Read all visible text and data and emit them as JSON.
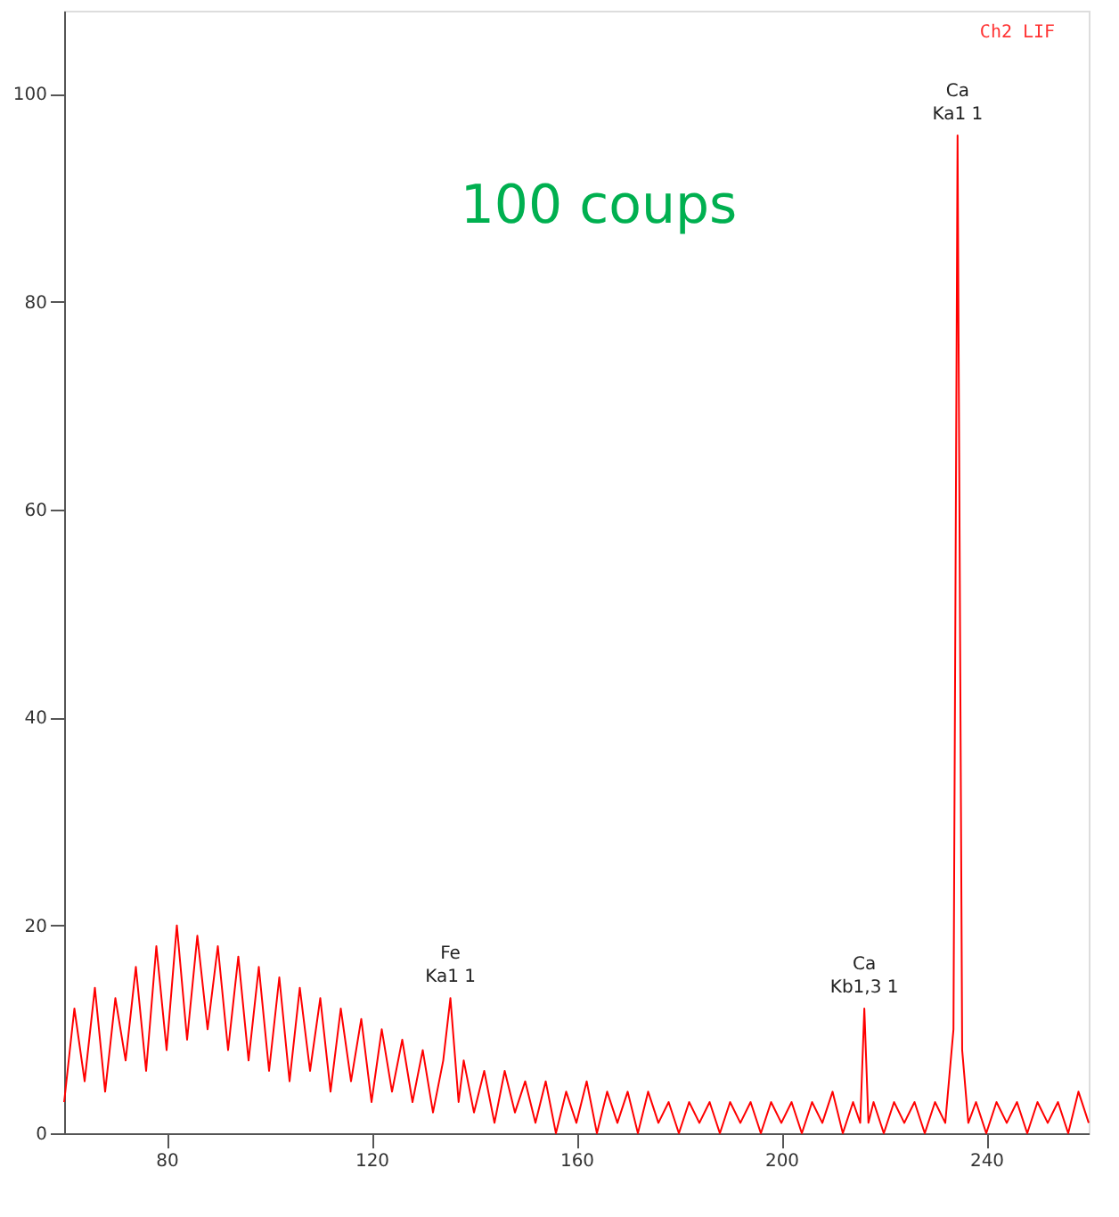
{
  "chart_data": {
    "type": "line",
    "xlim": [
      60,
      260
    ],
    "ylim": [
      0,
      108
    ],
    "xticks": [
      80,
      120,
      160,
      200,
      240
    ],
    "yticks": [
      0,
      20,
      40,
      60,
      80,
      100
    ],
    "grid": false,
    "marker": "none",
    "line_style": "solid",
    "series": [
      {
        "color": "#ff0000",
        "x": [
          60,
          62,
          64,
          66,
          68,
          70,
          72,
          74,
          76,
          78,
          80,
          82,
          84,
          86,
          88,
          90,
          92,
          94,
          96,
          98,
          100,
          102,
          104,
          106,
          108,
          110,
          112,
          114,
          116,
          118,
          120,
          122,
          124,
          126,
          128,
          130,
          132,
          134,
          135.4,
          137,
          138,
          140,
          142,
          144,
          146,
          148,
          150,
          152,
          154,
          156,
          158,
          160,
          162,
          164,
          166,
          168,
          170,
          172,
          174,
          176,
          178,
          180,
          182,
          184,
          186,
          188,
          190,
          192,
          194,
          196,
          198,
          200,
          202,
          204,
          206,
          208,
          210,
          212,
          214,
          215.4,
          216.2,
          217,
          218,
          220,
          222,
          224,
          226,
          228,
          230,
          232,
          233.6,
          234.4,
          235.3,
          236.5,
          238,
          240,
          242,
          244,
          246,
          248,
          250,
          252,
          254,
          256,
          258,
          260
        ],
        "values": [
          3,
          12,
          5,
          14,
          4,
          13,
          7,
          16,
          6,
          18,
          8,
          20,
          9,
          19,
          10,
          18,
          8,
          17,
          7,
          16,
          6,
          15,
          5,
          14,
          6,
          13,
          4,
          12,
          5,
          11,
          3,
          10,
          4,
          9,
          3,
          8,
          2,
          7,
          13,
          3,
          7,
          2,
          6,
          1,
          6,
          2,
          5,
          1,
          5,
          0,
          4,
          1,
          5,
          0,
          4,
          1,
          4,
          0,
          4,
          1,
          3,
          0,
          3,
          1,
          3,
          0,
          3,
          1,
          3,
          0,
          3,
          1,
          3,
          0,
          3,
          1,
          4,
          0,
          3,
          1,
          12,
          1,
          3,
          0,
          3,
          1,
          3,
          0,
          3,
          1,
          10,
          96,
          8,
          1,
          3,
          0,
          3,
          1,
          3,
          0,
          3,
          1,
          3,
          0,
          4,
          1
        ]
      }
    ],
    "annotations": [
      "100 coups",
      "Ch2  LIF",
      {
        "text": "Fe\nKa1 1",
        "x": 135.4,
        "y": 13
      },
      {
        "text": "Ca\nKb1,3 1",
        "x": 216.2,
        "y": 12
      },
      {
        "text": "Ca\nKa1 1",
        "x": 234.4,
        "y": 96
      }
    ]
  }
}
